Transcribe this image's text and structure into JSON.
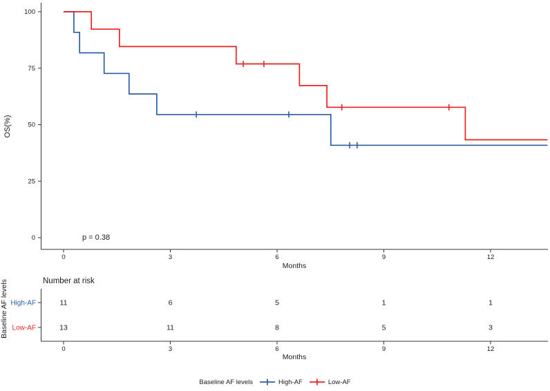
{
  "chart_data": {
    "type": "line",
    "subtype": "kaplan-meier-step",
    "title": "",
    "xlabel": "Months",
    "ylabel": "OS(%)",
    "xticks": [
      0,
      3,
      6,
      9,
      12
    ],
    "yticks": [
      0,
      25,
      50,
      75,
      100
    ],
    "xlim": [
      -0.6,
      13.6
    ],
    "ylim": [
      0,
      100
    ],
    "grid": "off",
    "legend_position": "bottom",
    "pvalue_label": "p = 0.38",
    "series": [
      {
        "name": "High-AF",
        "color": "#2D5DA8",
        "points": [
          [
            0,
            100
          ],
          [
            0.29,
            100
          ],
          [
            0.29,
            90.9
          ],
          [
            0.45,
            90.9
          ],
          [
            0.45,
            81.8
          ],
          [
            1.14,
            81.8
          ],
          [
            1.14,
            72.7
          ],
          [
            1.84,
            72.7
          ],
          [
            1.84,
            63.6
          ],
          [
            2.62,
            63.6
          ],
          [
            2.62,
            54.5
          ],
          [
            7.51,
            54.5
          ],
          [
            7.51,
            40.9
          ],
          [
            13.6,
            40.9
          ]
        ],
        "censor_marks": [
          [
            3.73,
            54.5
          ],
          [
            6.33,
            54.5
          ],
          [
            8.04,
            40.9
          ],
          [
            8.25,
            40.9
          ]
        ]
      },
      {
        "name": "Low-AF",
        "color": "#ED1F1F",
        "points": [
          [
            0,
            100
          ],
          [
            0.78,
            100
          ],
          [
            0.78,
            92.3
          ],
          [
            1.57,
            92.3
          ],
          [
            1.57,
            84.6
          ],
          [
            4.85,
            84.6
          ],
          [
            4.85,
            76.9
          ],
          [
            6.63,
            76.9
          ],
          [
            6.63,
            67.3
          ],
          [
            7.4,
            67.3
          ],
          [
            7.4,
            57.7
          ],
          [
            11.29,
            57.7
          ],
          [
            11.29,
            43.3
          ],
          [
            13.6,
            43.3
          ]
        ],
        "censor_marks": [
          [
            5.05,
            76.9
          ],
          [
            5.63,
            76.9
          ],
          [
            7.82,
            57.7
          ],
          [
            10.83,
            57.7
          ]
        ]
      }
    ],
    "risk_table": {
      "title": "Number at risk",
      "ylabel": "Baseline AF levels",
      "xlabel": "Months",
      "times": [
        0,
        3,
        6,
        9,
        12
      ],
      "rows": [
        {
          "label": "High-AF",
          "color": "#2D5DA8",
          "counts": [
            "11",
            "6",
            "5",
            "1",
            "1"
          ]
        },
        {
          "label": "Low-AF",
          "color": "#ED1F1F",
          "counts": [
            "13",
            "11",
            "8",
            "5",
            "3"
          ]
        }
      ]
    },
    "legend": {
      "title": "Baseline AF levels",
      "items": [
        {
          "label": "High-AF",
          "color": "#2D5DA8"
        },
        {
          "label": "Low-AF",
          "color": "#ED1F1F"
        }
      ]
    },
    "axis_color": "#333333",
    "text_color": "#1a1a1a"
  }
}
